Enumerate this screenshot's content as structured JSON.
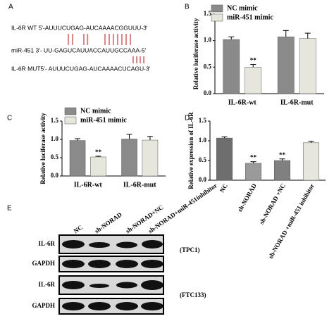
{
  "panels": [
    "A",
    "B",
    "C",
    "D",
    "E"
  ],
  "sequence": {
    "lines": [
      "IL-6R WT 5'-AUUUCUGAG-AUCAAAACGGUUU-3'",
      "miR-451 3'- UU-GAGUCAUUACCAUUGCCAAA-5'",
      "IL-6R MUT5'- AUUUCUGAG-AUCAAAACUCAGU-3'"
    ]
  },
  "chart_data": [
    {
      "type": "bar",
      "ylabel": "Relative luciferase activity",
      "categories": [
        "IL-6R-wt",
        "IL-6R-mut"
      ],
      "series": [
        {
          "name": "NC mimic",
          "color": "#8a8a8a",
          "values": [
            1.02,
            1.07
          ],
          "errors": [
            0.05,
            0.12
          ],
          "significance": [
            null,
            null
          ]
        },
        {
          "name": "miR-451 mimic",
          "color": "#e6e6dc",
          "values": [
            0.5,
            1.04
          ],
          "errors": [
            0.05,
            0.1
          ],
          "significance": [
            "**",
            null
          ]
        }
      ],
      "ylim": [
        0,
        1.5
      ],
      "yticks": [
        {
          "value": 0,
          "label": "0.0"
        },
        0.5,
        {
          "value": 1,
          "label": "1.0"
        },
        1.5
      ]
    },
    {
      "type": "bar",
      "ylabel": "Relative luciferase activity",
      "categories": [
        "IL-6R-wt",
        "IL-6R-mut"
      ],
      "series": [
        {
          "name": "NC mimic",
          "color": "#8a8a8a",
          "values": [
            0.97,
            1.01
          ],
          "errors": [
            0.05,
            0.13
          ],
          "significance": [
            null,
            null
          ]
        },
        {
          "name": "miR-451 mimic",
          "color": "#e6e6dc",
          "values": [
            0.52,
            0.98
          ],
          "errors": [
            0.02,
            0.1
          ],
          "significance": [
            "**",
            null
          ]
        }
      ],
      "ylim": [
        0,
        1.5
      ],
      "yticks": [
        {
          "value": 0,
          "label": "0.0"
        },
        0.5,
        {
          "value": 1,
          "label": "1.0"
        },
        1.5
      ]
    },
    {
      "type": "bar",
      "ylabel": "Relative expression of IL-6R",
      "categories": [
        "NC",
        "sh-NORAD",
        "sh-NORAD +NC",
        "sh-NORAD +miR-451 inhibitor"
      ],
      "values": [
        1.07,
        0.43,
        0.5,
        0.95
      ],
      "errors": [
        0.03,
        0.04,
        0.04,
        0.04
      ],
      "significance": [
        null,
        "**",
        "**",
        null
      ],
      "colors": [
        "#6e6e6e",
        "#9a9a9a",
        "#808080",
        "#e6e6dc"
      ],
      "ylim": [
        0,
        1.5
      ],
      "yticks": [
        {
          "value": 0,
          "label": "0.0"
        },
        0.5,
        {
          "value": 1,
          "label": "1.0"
        },
        1.5
      ]
    }
  ],
  "blot": {
    "lanes": [
      "NC",
      "sh-NORAD",
      "sh-NORAD+NC",
      "sh-NORAD+miR-451inhibitor"
    ],
    "rows": [
      "IL-6R",
      "GAPDH",
      "IL-6R",
      "GAPDH"
    ],
    "cell_lines": [
      "(TPC1)",
      "(FTC133)"
    ]
  }
}
